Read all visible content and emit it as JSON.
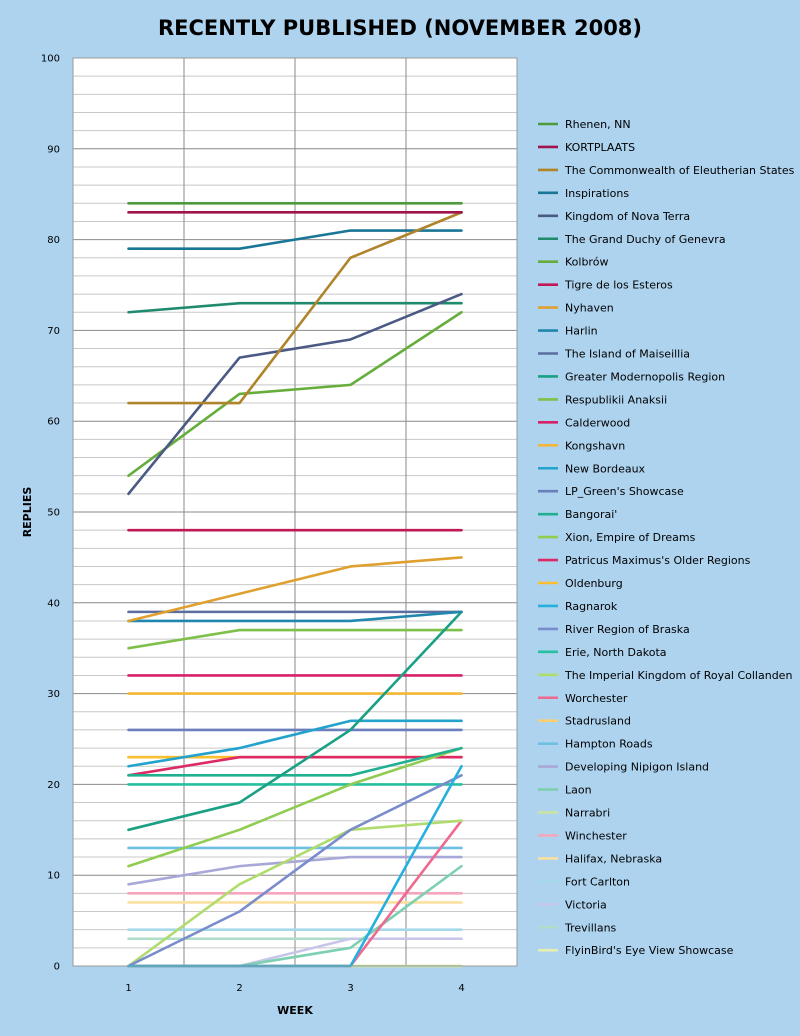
{
  "chart_data": {
    "type": "line",
    "title": "RECENTLY PUBLISHED (NOVEMBER 2008)",
    "xlabel": "WEEK",
    "ylabel": "REPLIES",
    "x": [
      1,
      2,
      3,
      4
    ],
    "ylim": [
      0,
      100
    ],
    "yticks": [
      0,
      10,
      20,
      30,
      40,
      50,
      60,
      70,
      80,
      90,
      100
    ],
    "grid": true,
    "legend_position": "right",
    "series": [
      {
        "name": "Rhenen, NN",
        "color": "#4e9a3a",
        "values": [
          84,
          84,
          84,
          84
        ]
      },
      {
        "name": "KORTPLAATS",
        "color": "#a0144c",
        "values": [
          83,
          83,
          83,
          83
        ]
      },
      {
        "name": "The Commonwealth of Eleutherian States",
        "color": "#b0842a",
        "values": [
          62,
          62,
          78,
          83
        ]
      },
      {
        "name": "Inspirations",
        "color": "#1a7696",
        "values": [
          79,
          79,
          81,
          81
        ]
      },
      {
        "name": "Kingdom of Nova Terra",
        "color": "#4a5a84",
        "values": [
          52,
          67,
          69,
          74
        ]
      },
      {
        "name": "The Grand Duchy of Genevra",
        "color": "#1f8a6e",
        "values": [
          72,
          73,
          73,
          73
        ]
      },
      {
        "name": "Kolbrów",
        "color": "#66ae3c",
        "values": [
          54,
          63,
          64,
          72
        ]
      },
      {
        "name": "Tigre de los Esteros",
        "color": "#c01a56",
        "values": [
          48,
          48,
          48,
          48
        ]
      },
      {
        "name": "Nyhaven",
        "color": "#e0a030",
        "values": [
          38,
          41,
          44,
          45
        ]
      },
      {
        "name": "Harlin",
        "color": "#1f88ac",
        "values": [
          38,
          38,
          38,
          39
        ]
      },
      {
        "name": "The Island of Maiseillia",
        "color": "#5a6ea0",
        "values": [
          39,
          39,
          39,
          39
        ]
      },
      {
        "name": "Greater Modernopolis Region",
        "color": "#1aa083",
        "values": [
          15,
          18,
          26,
          39
        ]
      },
      {
        "name": "Respublikii Anaksii",
        "color": "#7ec04a",
        "values": [
          35,
          37,
          37,
          37
        ]
      },
      {
        "name": "Calderwood",
        "color": "#d62069",
        "values": [
          32,
          32,
          32,
          32
        ]
      },
      {
        "name": "Kongshavn",
        "color": "#f5b536",
        "values": [
          30,
          30,
          30,
          30
        ]
      },
      {
        "name": "New Bordeaux",
        "color": "#22a2cc",
        "values": [
          22,
          24,
          27,
          27
        ]
      },
      {
        "name": "LP_Green's Showcase",
        "color": "#6a7fbc",
        "values": [
          26,
          26,
          26,
          26
        ]
      },
      {
        "name": "Bangorai'",
        "color": "#20b090",
        "values": [
          21,
          21,
          21,
          24
        ]
      },
      {
        "name": "Xion, Empire of Dreams",
        "color": "#90cc50",
        "values": [
          11,
          15,
          20,
          24
        ]
      },
      {
        "name": "Patricus Maximus's Older Regions",
        "color": "#dc2a64",
        "values": [
          21,
          23,
          23,
          23
        ]
      },
      {
        "name": "Oldenburg",
        "color": "#fac030",
        "values": [
          23,
          23,
          23,
          23
        ]
      },
      {
        "name": "Ragnarok",
        "color": "#26b0de",
        "values": [
          0,
          0,
          0,
          22
        ]
      },
      {
        "name": "River Region of Braska",
        "color": "#7a8ccc",
        "values": [
          0,
          6,
          15,
          21
        ]
      },
      {
        "name": "Erie, North Dakota",
        "color": "#26c0a0",
        "values": [
          20,
          20,
          20,
          20
        ]
      },
      {
        "name": "The Imperial Kingdom of Royal Collanden",
        "color": "#b0dc6e",
        "values": [
          0,
          9,
          15,
          16
        ]
      },
      {
        "name": "Worchester",
        "color": "#ee6a90",
        "values": [
          0,
          0,
          0,
          16
        ]
      },
      {
        "name": "Stadrusland",
        "color": "#fcd070",
        "values": [
          23,
          23,
          23,
          23
        ]
      },
      {
        "name": "Hampton Roads",
        "color": "#6ec0e2",
        "values": [
          13,
          13,
          13,
          13
        ]
      },
      {
        "name": "Developing Nipigon Island",
        "color": "#a8a8d8",
        "values": [
          9,
          11,
          12,
          12
        ]
      },
      {
        "name": "Laon",
        "color": "#7ed0b2",
        "values": [
          0,
          0,
          2,
          11
        ]
      },
      {
        "name": "Narrabri",
        "color": "#cce6a0",
        "values": [
          0,
          0,
          0,
          0
        ]
      },
      {
        "name": "Winchester",
        "color": "#f5a6bc",
        "values": [
          8,
          8,
          8,
          8
        ]
      },
      {
        "name": "Halifax, Nebraska",
        "color": "#fde0a0",
        "values": [
          7,
          7,
          7,
          7
        ]
      },
      {
        "name": "Fort Carlton",
        "color": "#a6d8ec",
        "values": [
          4,
          4,
          4,
          4
        ]
      },
      {
        "name": "Victoria",
        "color": "#c6c6ea",
        "values": [
          0,
          0,
          3,
          3
        ]
      },
      {
        "name": "Trevillans",
        "color": "#aedec8",
        "values": [
          3,
          3,
          3,
          3
        ]
      },
      {
        "name": "FlyinBird's Eye View Showcase",
        "color": "#e6f0ae",
        "values": [
          0,
          0,
          0,
          0
        ]
      }
    ]
  }
}
